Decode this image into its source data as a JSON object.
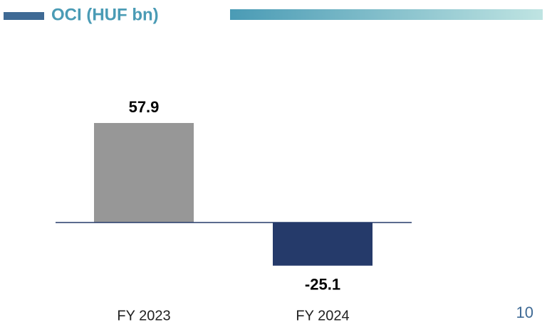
{
  "chart_data": {
    "type": "bar",
    "title": "OCI (HUF bn)",
    "categories": [
      "FY 2023",
      "FY 2024"
    ],
    "values": [
      57.9,
      -25.1
    ],
    "colors": [
      "#979797",
      "#253a6a"
    ]
  },
  "page_number": "10"
}
